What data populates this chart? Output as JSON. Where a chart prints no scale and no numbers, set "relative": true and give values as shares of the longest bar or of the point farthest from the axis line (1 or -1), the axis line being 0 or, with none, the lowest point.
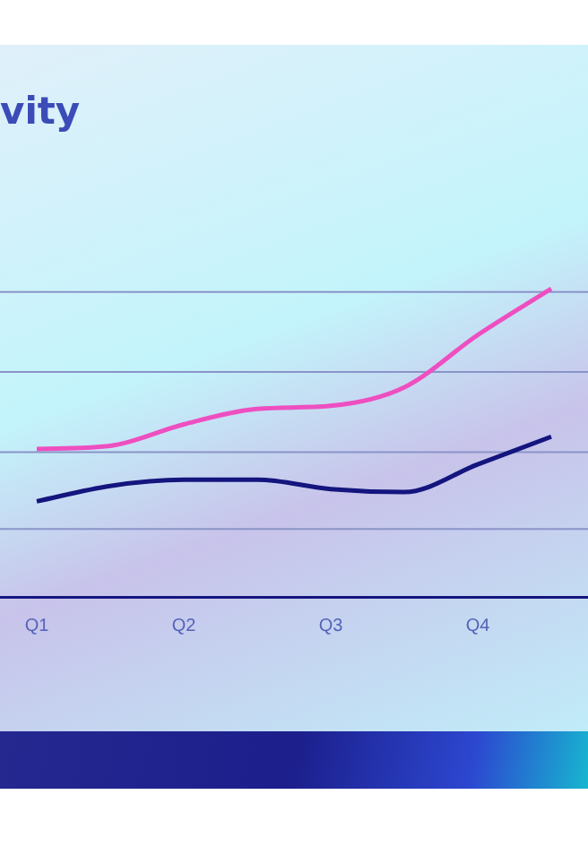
{
  "chart_data": {
    "type": "line",
    "title": "vity",
    "relative": true,
    "ref_lines": [
      {
        "axis": "y",
        "value": 0.22,
        "color": "#8a94c8"
      },
      {
        "axis": "y",
        "value": 0.47,
        "color": "#8a94c8"
      },
      {
        "axis": "y",
        "value": 0.73,
        "color": "#8a94c8"
      },
      {
        "axis": "y",
        "value": 0.99,
        "color": "#8a94c8"
      }
    ],
    "legend": false,
    "marker": "none",
    "categories": [
      "Q1",
      null,
      "Q2",
      null,
      "Q3",
      null,
      "Q4",
      null
    ],
    "series": [
      {
        "color": "#ee4fc0",
        "values": [
          0.48,
          0.49,
          0.56,
          0.61,
          0.62,
          0.68,
          0.85,
          1
        ]
      },
      {
        "color": "#14157e",
        "values": [
          0.31,
          0.36,
          0.38,
          0.38,
          0.35,
          0.34,
          0.43,
          0.52
        ]
      }
    ]
  }
}
